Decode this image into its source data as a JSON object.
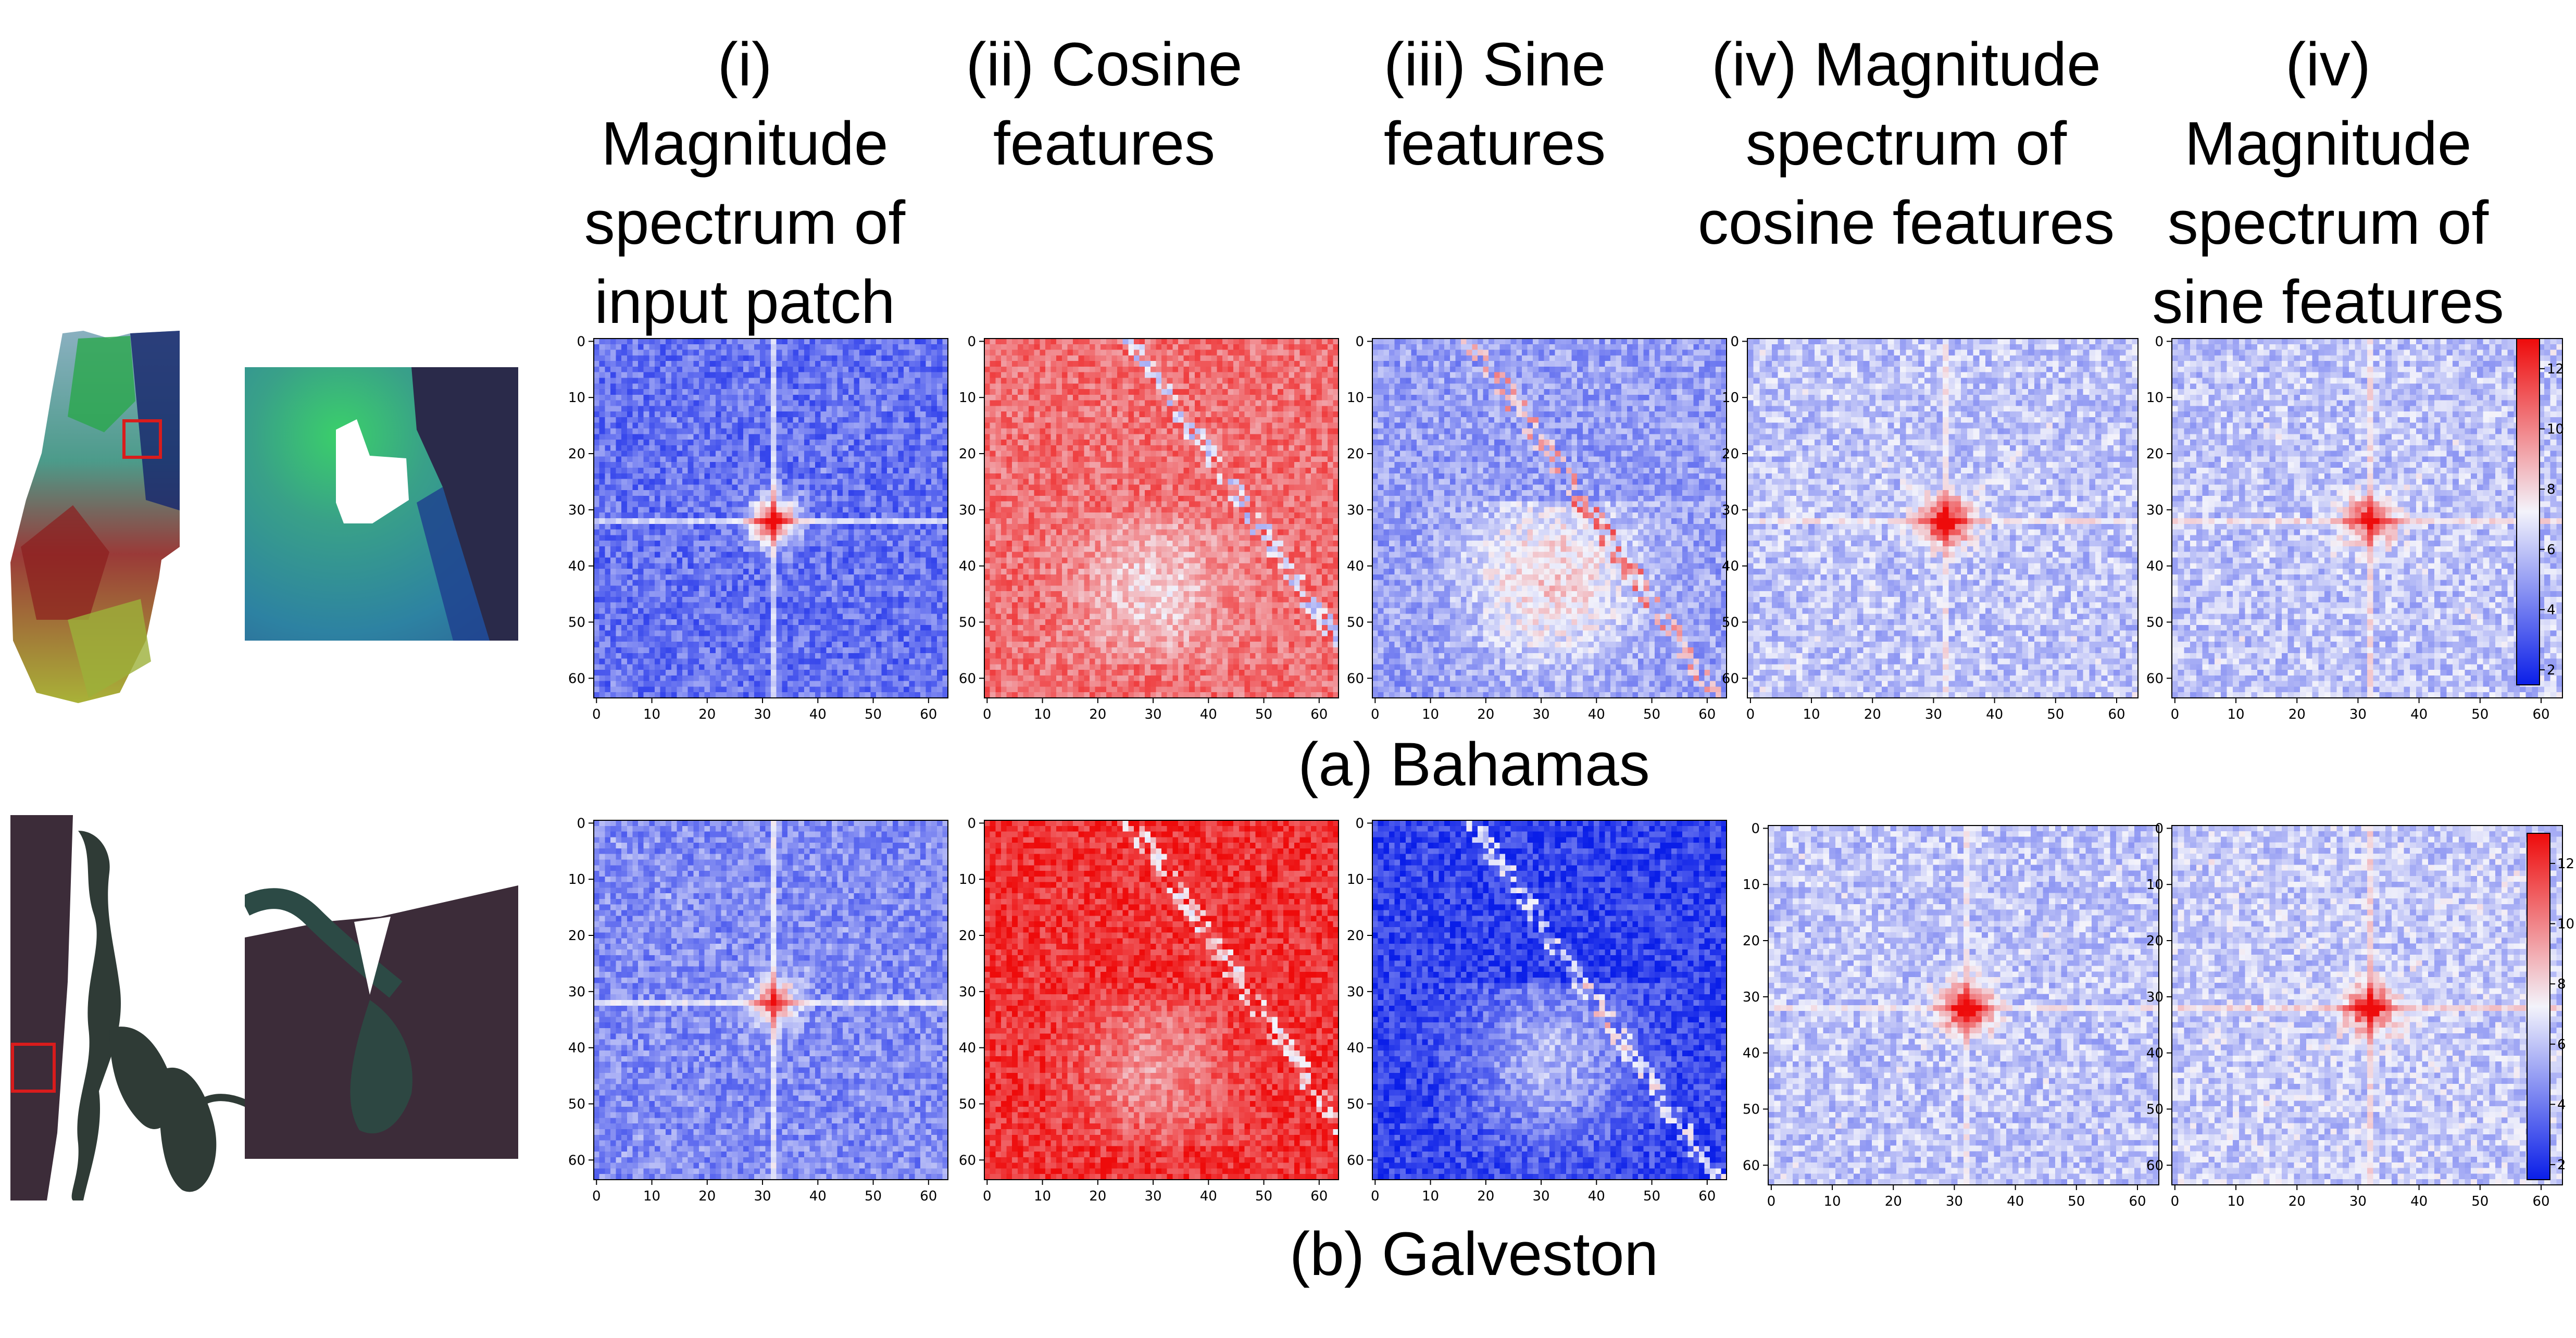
{
  "columns": [
    {
      "lines": [
        "(i)",
        "Magnitude",
        "spectrum of",
        "input patch"
      ]
    },
    {
      "lines": [
        "(ii) Cosine",
        "features"
      ]
    },
    {
      "lines": [
        "(iii) Sine",
        "features"
      ]
    },
    {
      "lines": [
        "(iv) Magnitude",
        "spectrum of",
        "cosine features"
      ]
    },
    {
      "lines": [
        "(iv)",
        "Magnitude",
        "spectrum of",
        "sine features"
      ]
    }
  ],
  "rows": [
    {
      "caption": "(a) Bahamas"
    },
    {
      "caption": "(b) Galveston"
    }
  ],
  "colors": {
    "low": "#0a1ee8",
    "mid": "#f3f3fb",
    "high": "#ee0b0b",
    "patch_box": "#d91c1c"
  },
  "chart_data": {
    "type": "heatmap",
    "grid": 64,
    "x_ticks": [
      "0",
      "10",
      "20",
      "30",
      "40",
      "50",
      "60"
    ],
    "y_ticks": [
      "0",
      "10",
      "20",
      "30",
      "40",
      "50",
      "60"
    ],
    "colorbar": {
      "ticks": [
        "12",
        "10",
        "8",
        "6",
        "4",
        "2"
      ],
      "vmin": 1.5,
      "vmax": 13
    },
    "panels": [
      {
        "row": "Bahamas",
        "kind": "spectrum",
        "center": 11,
        "background": 3.8,
        "cross": 7.5
      },
      {
        "row": "Bahamas",
        "kind": "cosine",
        "mean": 10.5
      },
      {
        "row": "Bahamas",
        "kind": "sine",
        "mean": 5.0
      },
      {
        "row": "Bahamas",
        "kind": "spectrum",
        "center": 12.5,
        "background": 6.0,
        "cross": 7.6
      },
      {
        "row": "Bahamas",
        "kind": "spectrum",
        "center": 11.5,
        "background": 6.0,
        "cross": 8.0
      },
      {
        "row": "Galveston",
        "kind": "spectrum",
        "center": 10,
        "background": 4.5,
        "cross": 7.8
      },
      {
        "row": "Galveston",
        "kind": "cosine",
        "mean": 12.0
      },
      {
        "row": "Galveston",
        "kind": "sine",
        "mean": 2.5
      },
      {
        "row": "Galveston",
        "kind": "spectrum",
        "center": 12.5,
        "background": 6.0,
        "cross": 7.2
      },
      {
        "row": "Galveston",
        "kind": "spectrum",
        "center": 12.0,
        "background": 6.2,
        "cross": 8.2
      }
    ]
  }
}
